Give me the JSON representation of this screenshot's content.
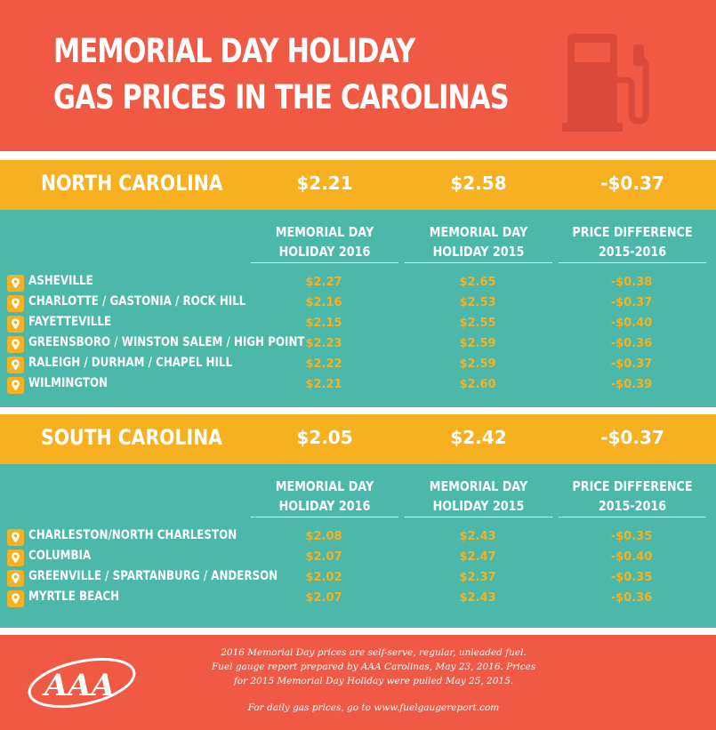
{
  "title": {
    "line1": "MEMORIAL DAY HOLIDAY",
    "line2": "GAS PRICES IN THE CAROLINAS"
  },
  "icons": {
    "header": "gas-pump-icon",
    "location": "location-pin-icon",
    "logo": "aaa-logo"
  },
  "colors": {
    "header": "#f05a45",
    "band": "#f7b01f",
    "panel": "#4bb8aa",
    "value": "#f7b01f"
  },
  "columns": {
    "col1": {
      "line1": "MEMORIAL DAY",
      "line2": "HOLIDAY 2016"
    },
    "col2": {
      "line1": "MEMORIAL DAY",
      "line2": "HOLIDAY 2015"
    },
    "col3": {
      "line1": "PRICE DIFFERENCE",
      "line2": "2015-2016"
    }
  },
  "nc": {
    "state": "NORTH CAROLINA",
    "avg_2016": "$2.21",
    "avg_2015": "$2.58",
    "diff": "-$0.37",
    "rows": [
      {
        "city": "ASHEVILLE",
        "p2016": "$2.27",
        "p2015": "$2.65",
        "diff": "-$0.38"
      },
      {
        "city": "CHARLOTTE / GASTONIA / ROCK HILL",
        "p2016": "$2.16",
        "p2015": "$2.53",
        "diff": "-$0.37"
      },
      {
        "city": "FAYETTEVILLE",
        "p2016": "$2.15",
        "p2015": "$2.55",
        "diff": "-$0.40"
      },
      {
        "city": "GREENSBORO / WINSTON SALEM / HIGH POINT",
        "p2016": "$2.23",
        "p2015": "$2.59",
        "diff": "-$0.36"
      },
      {
        "city": "RALEIGH / DURHAM / CHAPEL HILL",
        "p2016": "$2.22",
        "p2015": "$2.59",
        "diff": "-$0.37"
      },
      {
        "city": "WILMINGTON",
        "p2016": "$2.21",
        "p2015": "$2.60",
        "diff": "-$0.39"
      }
    ]
  },
  "sc": {
    "state": "SOUTH CAROLINA",
    "avg_2016": "$2.05",
    "avg_2015": "$2.42",
    "diff": "-$0.37",
    "rows": [
      {
        "city": "CHARLESTON/NORTH CHARLESTON",
        "p2016": "$2.08",
        "p2015": "$2.43",
        "diff": "-$0.35"
      },
      {
        "city": "COLUMBIA",
        "p2016": "$2.07",
        "p2015": "$2.47",
        "diff": "-$0.40"
      },
      {
        "city": "GREENVILLE / SPARTANBURG / ANDERSON",
        "p2016": "$2.02",
        "p2015": "$2.37",
        "diff": "-$0.35"
      },
      {
        "city": "MYRTLE BEACH",
        "p2016": "$2.07",
        "p2015": "$2.43",
        "diff": "-$0.36"
      }
    ]
  },
  "footer": {
    "line1": "2016 Memorial Day prices are self-serve, regular, unleaded fuel.",
    "line2": "Fuel gauge report prepared by AAA Carolinas, May 23, 2016. Prices",
    "line3": "for 2015 Memorial Day Holiday were pulled May 25, 2015.",
    "line4": "For daily gas prices, go to www.fuelgaugereport.com",
    "logo_text": "AAA"
  }
}
